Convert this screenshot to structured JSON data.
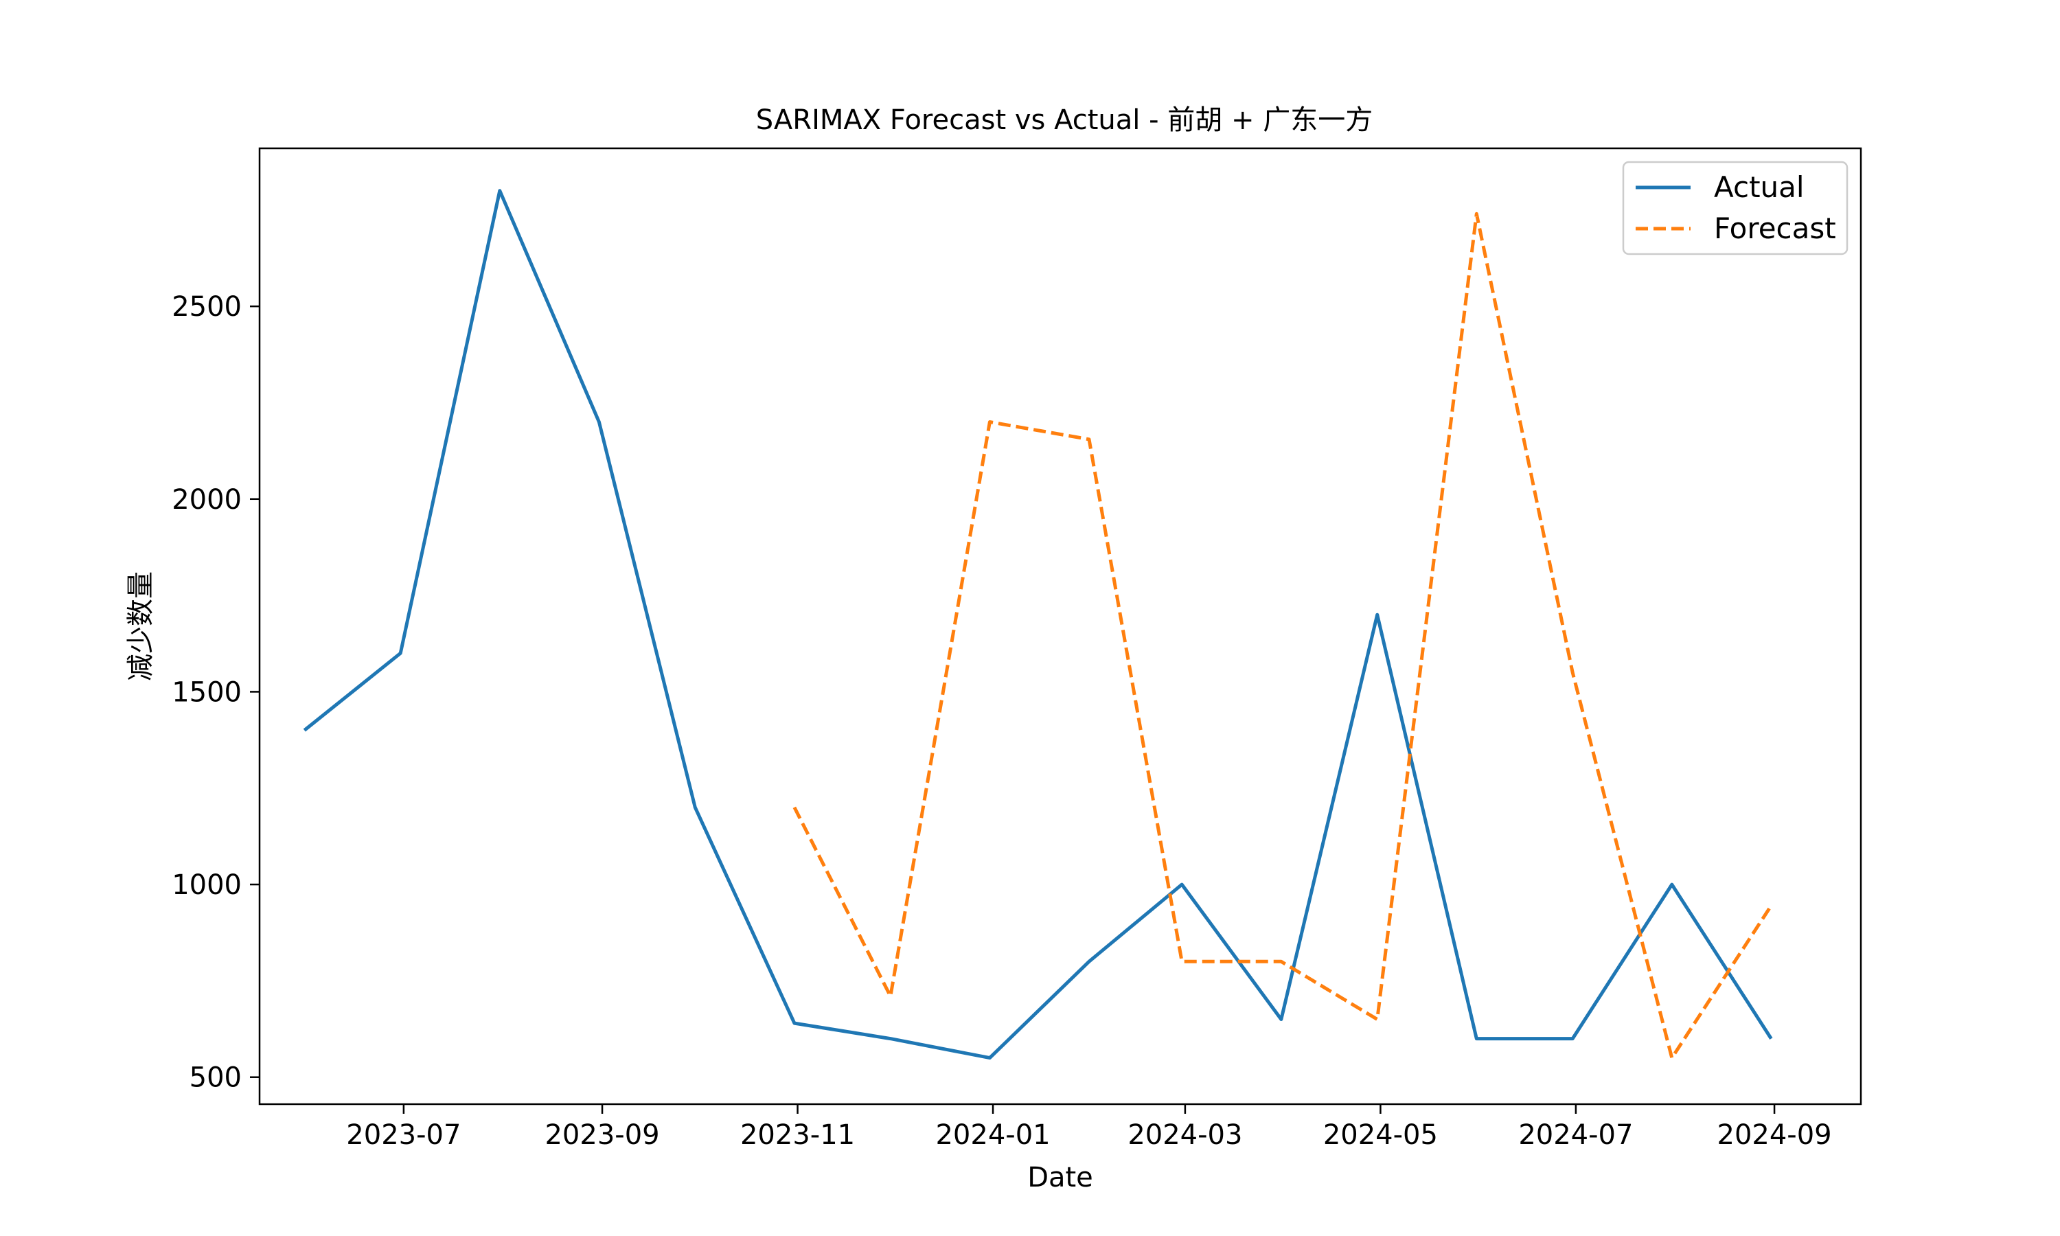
{
  "chart_data": {
    "type": "line",
    "title": "SARIMAX Forecast vs Actual - 前胡 + 广东一方",
    "xlabel": "Date",
    "ylabel": "减少数量",
    "x_ticks": [
      "2023-07",
      "2023-09",
      "2023-11",
      "2024-01",
      "2024-03",
      "2024-05",
      "2024-07",
      "2024-09"
    ],
    "y_ticks": [
      500,
      1000,
      1500,
      2000,
      2500
    ],
    "xlim": [
      "2023-05-17",
      "2024-09-28"
    ],
    "ylim": [
      430,
      2910
    ],
    "grid": false,
    "legend_position": "top-right",
    "series": [
      {
        "name": "Actual",
        "color": "#1f77b4",
        "style": "solid",
        "points": [
          {
            "x": "2023-05-31",
            "y": 1400
          },
          {
            "x": "2023-06-30",
            "y": 1600
          },
          {
            "x": "2023-07-31",
            "y": 2800
          },
          {
            "x": "2023-08-31",
            "y": 2200
          },
          {
            "x": "2023-09-30",
            "y": 1200
          },
          {
            "x": "2023-10-31",
            "y": 640
          },
          {
            "x": "2023-11-30",
            "y": 600
          },
          {
            "x": "2023-12-31",
            "y": 550
          },
          {
            "x": "2024-01-31",
            "y": 800
          },
          {
            "x": "2024-02-29",
            "y": 1000
          },
          {
            "x": "2024-03-31",
            "y": 650
          },
          {
            "x": "2024-04-30",
            "y": 1700
          },
          {
            "x": "2024-05-31",
            "y": 600
          },
          {
            "x": "2024-06-30",
            "y": 600
          },
          {
            "x": "2024-07-31",
            "y": 1000
          },
          {
            "x": "2024-08-31",
            "y": 600
          }
        ]
      },
      {
        "name": "Forecast",
        "color": "#ff7f0e",
        "style": "dashed",
        "points": [
          {
            "x": "2023-10-31",
            "y": 1200
          },
          {
            "x": "2023-11-30",
            "y": 710
          },
          {
            "x": "2023-12-31",
            "y": 2200
          },
          {
            "x": "2024-01-31",
            "y": 2155
          },
          {
            "x": "2024-02-29",
            "y": 800
          },
          {
            "x": "2024-03-31",
            "y": 800
          },
          {
            "x": "2024-04-30",
            "y": 650
          },
          {
            "x": "2024-05-31",
            "y": 2740
          },
          {
            "x": "2024-06-30",
            "y": 1550
          },
          {
            "x": "2024-07-31",
            "y": 550
          },
          {
            "x": "2024-08-31",
            "y": 945
          }
        ]
      }
    ]
  }
}
